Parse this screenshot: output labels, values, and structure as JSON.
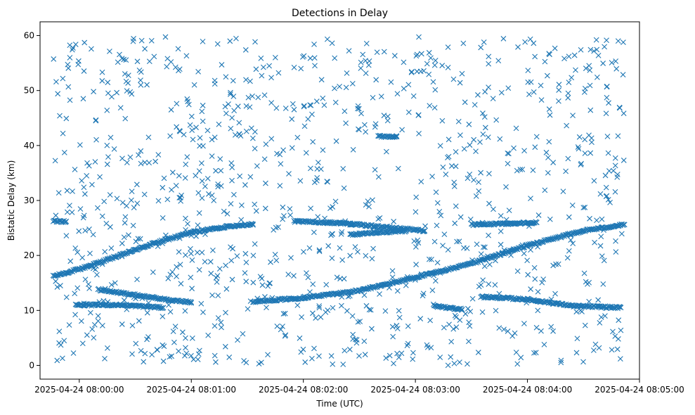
{
  "chart_data": {
    "type": "scatter",
    "title": "Detections in Delay",
    "xlabel": "Time (UTC)",
    "ylabel": "Bistatic Delay (km)",
    "x_axis_type": "time",
    "xlim": [
      "2025-04-24 07:59:39",
      "2025-04-24 08:05:00"
    ],
    "ylim": [
      -2.5,
      62.5
    ],
    "xticks": [
      "2025-04-24 08:00:00",
      "2025-04-24 08:01:00",
      "2025-04-24 08:02:00",
      "2025-04-24 08:03:00",
      "2025-04-24 08:04:00",
      "2025-04-24 08:05:00"
    ],
    "xtick_labels": [
      "2025-04-24 08:00:00",
      "2025-04-24 08:01:00",
      "2025-04-24 08:02:00",
      "2025-04-24 08:03:00",
      "2025-04-24 08:04:00",
      "2025-04-24 08:05:00"
    ],
    "yticks": [
      0,
      10,
      20,
      30,
      40,
      50,
      60
    ],
    "ytick_labels": [
      "0",
      "10",
      "20",
      "30",
      "40",
      "50",
      "60"
    ],
    "grid": false,
    "marker": "x",
    "color": "#1f77b4",
    "time_range": [
      "2025-04-24 07:59:46",
      "2025-04-24 08:04:52"
    ],
    "tracks": [
      {
        "points": [
          [
            "2025-04-24 07:59:46",
            16.2
          ],
          [
            "2025-04-24 08:00:00",
            17.5
          ],
          [
            "2025-04-24 08:00:20",
            19.8
          ],
          [
            "2025-04-24 08:00:40",
            22.2
          ],
          [
            "2025-04-24 08:01:00",
            24.2
          ],
          [
            "2025-04-24 08:01:20",
            25.3
          ],
          [
            "2025-04-24 08:01:33",
            25.7
          ]
        ]
      },
      {
        "points": [
          [
            "2025-04-24 08:00:10",
            13.8
          ],
          [
            "2025-04-24 08:00:30",
            12.8
          ],
          [
            "2025-04-24 08:00:50",
            11.8
          ],
          [
            "2025-04-24 08:01:00",
            11.5
          ]
        ]
      },
      {
        "points": [
          [
            "2025-04-24 08:01:33",
            11.6
          ],
          [
            "2025-04-24 08:02:00",
            12.3
          ],
          [
            "2025-04-24 08:02:30",
            13.6
          ],
          [
            "2025-04-24 08:03:00",
            16.0
          ],
          [
            "2025-04-24 08:03:30",
            18.5
          ],
          [
            "2025-04-24 08:04:00",
            21.8
          ],
          [
            "2025-04-24 08:04:30",
            24.5
          ],
          [
            "2025-04-24 08:04:52",
            25.6
          ]
        ]
      },
      {
        "points": [
          [
            "2025-04-24 08:01:55",
            26.2
          ],
          [
            "2025-04-24 08:02:20",
            25.9
          ],
          [
            "2025-04-24 08:02:45",
            25.1
          ],
          [
            "2025-04-24 08:03:05",
            24.5
          ]
        ]
      },
      {
        "points": [
          [
            "2025-04-24 08:02:25",
            23.8
          ],
          [
            "2025-04-24 08:02:40",
            24.2
          ],
          [
            "2025-04-24 08:02:55",
            24.4
          ]
        ]
      },
      {
        "points": [
          [
            "2025-04-24 08:03:30",
            25.6
          ],
          [
            "2025-04-24 08:03:50",
            25.8
          ],
          [
            "2025-04-24 08:04:05",
            26.0
          ]
        ]
      },
      {
        "points": [
          [
            "2025-04-24 07:59:46",
            26.2
          ],
          [
            "2025-04-24 07:59:53",
            26.2
          ]
        ]
      },
      {
        "points": [
          [
            "2025-04-24 07:59:58",
            11.0
          ],
          [
            "2025-04-24 08:00:22",
            11.0
          ],
          [
            "2025-04-24 08:00:45",
            10.5
          ]
        ]
      },
      {
        "points": [
          [
            "2025-04-24 08:03:35",
            12.5
          ],
          [
            "2025-04-24 08:04:00",
            12.0
          ],
          [
            "2025-04-24 08:04:25",
            10.8
          ],
          [
            "2025-04-24 08:04:50",
            10.5
          ]
        ]
      },
      {
        "points": [
          [
            "2025-04-24 08:02:40",
            41.7
          ],
          [
            "2025-04-24 08:02:50",
            41.6
          ]
        ]
      },
      {
        "points": [
          [
            "2025-04-24 08:03:10",
            10.8
          ],
          [
            "2025-04-24 08:03:25",
            10.2
          ]
        ]
      }
    ],
    "clutter": {
      "count": 1080,
      "y_range": [
        0,
        60
      ]
    }
  }
}
